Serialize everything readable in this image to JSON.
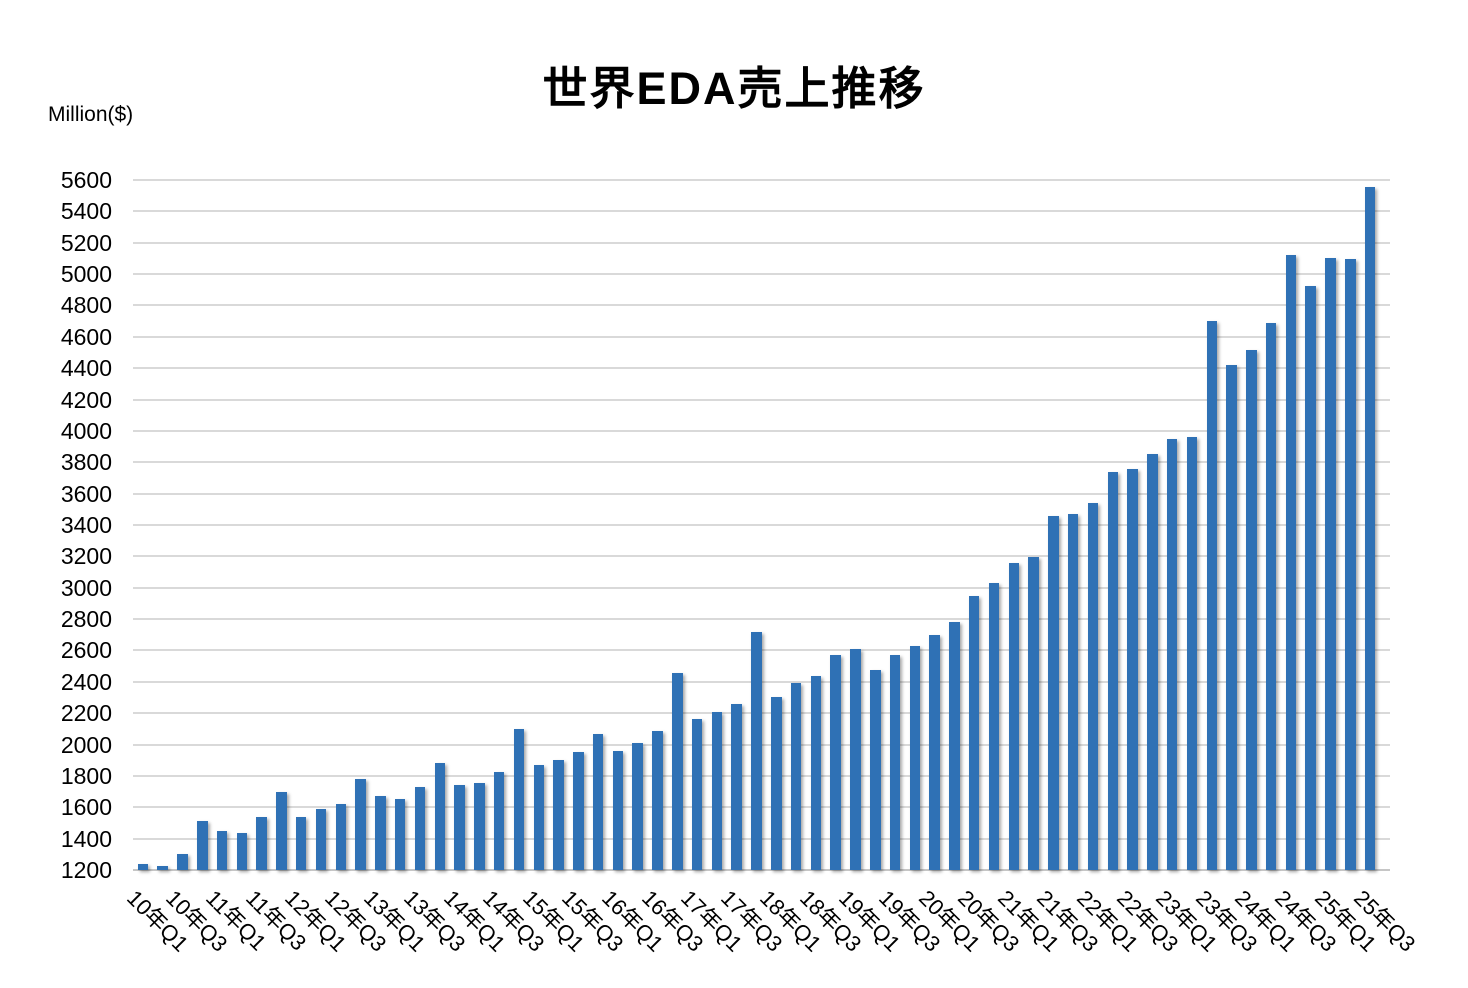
{
  "title": "世界EDA売上推移",
  "y_axis_unit_label": "Million($)",
  "colors": {
    "bar": "#2F71B5",
    "gridline": "#D9D9D9",
    "baseline": "#C6C6C6",
    "text": "#000000",
    "background": "#FFFFFF"
  },
  "chart_data": {
    "type": "bar",
    "title": "世界EDA売上推移",
    "xlabel": "",
    "ylabel": "Million($)",
    "ylim": [
      1200,
      5600
    ],
    "ytick_step": 200,
    "grid": true,
    "legend_position": "none",
    "categories": [
      "10年Q1",
      "10年Q2",
      "10年Q3",
      "10年Q4",
      "11年Q1",
      "11年Q2",
      "11年Q3",
      "11年Q4",
      "12年Q1",
      "12年Q2",
      "12年Q3",
      "12年Q4",
      "13年Q1",
      "13年Q2",
      "13年Q3",
      "13年Q4",
      "14年Q1",
      "14年Q2",
      "14年Q3",
      "14年Q4",
      "15年Q1",
      "15年Q2",
      "15年Q3",
      "15年Q4",
      "16年Q1",
      "16年Q2",
      "16年Q3",
      "16年Q4",
      "17年Q1",
      "17年Q2",
      "17年Q3",
      "17年Q4",
      "18年Q1",
      "18年Q2",
      "18年Q3",
      "18年Q4",
      "19年Q1",
      "19年Q2",
      "19年Q3",
      "19年Q4",
      "20年Q1",
      "20年Q2",
      "20年Q3",
      "20年Q4",
      "21年Q1",
      "21年Q2",
      "21年Q3",
      "21年Q4",
      "22年Q1",
      "22年Q2",
      "22年Q3",
      "22年Q4",
      "23年Q1",
      "23年Q2",
      "23年Q3",
      "23年Q4",
      "24年Q1",
      "24年Q2",
      "24年Q3",
      "24年Q4",
      "25年Q1",
      "25年Q2",
      "25年Q3"
    ],
    "values": [
      1240,
      1225,
      1305,
      1510,
      1450,
      1435,
      1540,
      1700,
      1535,
      1590,
      1620,
      1780,
      1670,
      1650,
      1730,
      1885,
      1745,
      1755,
      1825,
      2100,
      1870,
      1900,
      1955,
      2065,
      1960,
      2010,
      2085,
      2455,
      2165,
      2205,
      2260,
      2715,
      2305,
      2390,
      2440,
      2570,
      2610,
      2475,
      2570,
      2630,
      2700,
      2780,
      2945,
      3030,
      3155,
      3195,
      3455,
      3470,
      3540,
      3740,
      3760,
      3850,
      3950,
      3960,
      4700,
      4420,
      4515,
      4685,
      5120,
      4925,
      5100,
      5095,
      5555
    ],
    "xtick_labels": [
      "10年Q1",
      "10年Q3",
      "11年Q1",
      "11年Q3",
      "12年Q1",
      "12年Q3",
      "13年Q1",
      "13年Q3",
      "14年Q1",
      "14年Q3",
      "15年Q1",
      "15年Q3",
      "16年Q1",
      "16年Q3",
      "17年Q1",
      "17年Q3",
      "18年Q1",
      "18年Q3",
      "19年Q1",
      "19年Q3",
      "20年Q1",
      "20年Q3",
      "21年Q1",
      "21年Q3",
      "22年Q1",
      "22年Q3",
      "23年Q1",
      "23年Q3",
      "24年Q1",
      "24年Q3",
      "25年Q1",
      "25年Q3"
    ],
    "ytick_labels": [
      "1200",
      "1400",
      "1600",
      "1800",
      "2000",
      "2200",
      "2400",
      "2600",
      "2800",
      "3000",
      "3200",
      "3400",
      "3600",
      "3800",
      "4000",
      "4200",
      "4400",
      "4600",
      "4800",
      "5000",
      "5200",
      "5400",
      "5600"
    ]
  }
}
